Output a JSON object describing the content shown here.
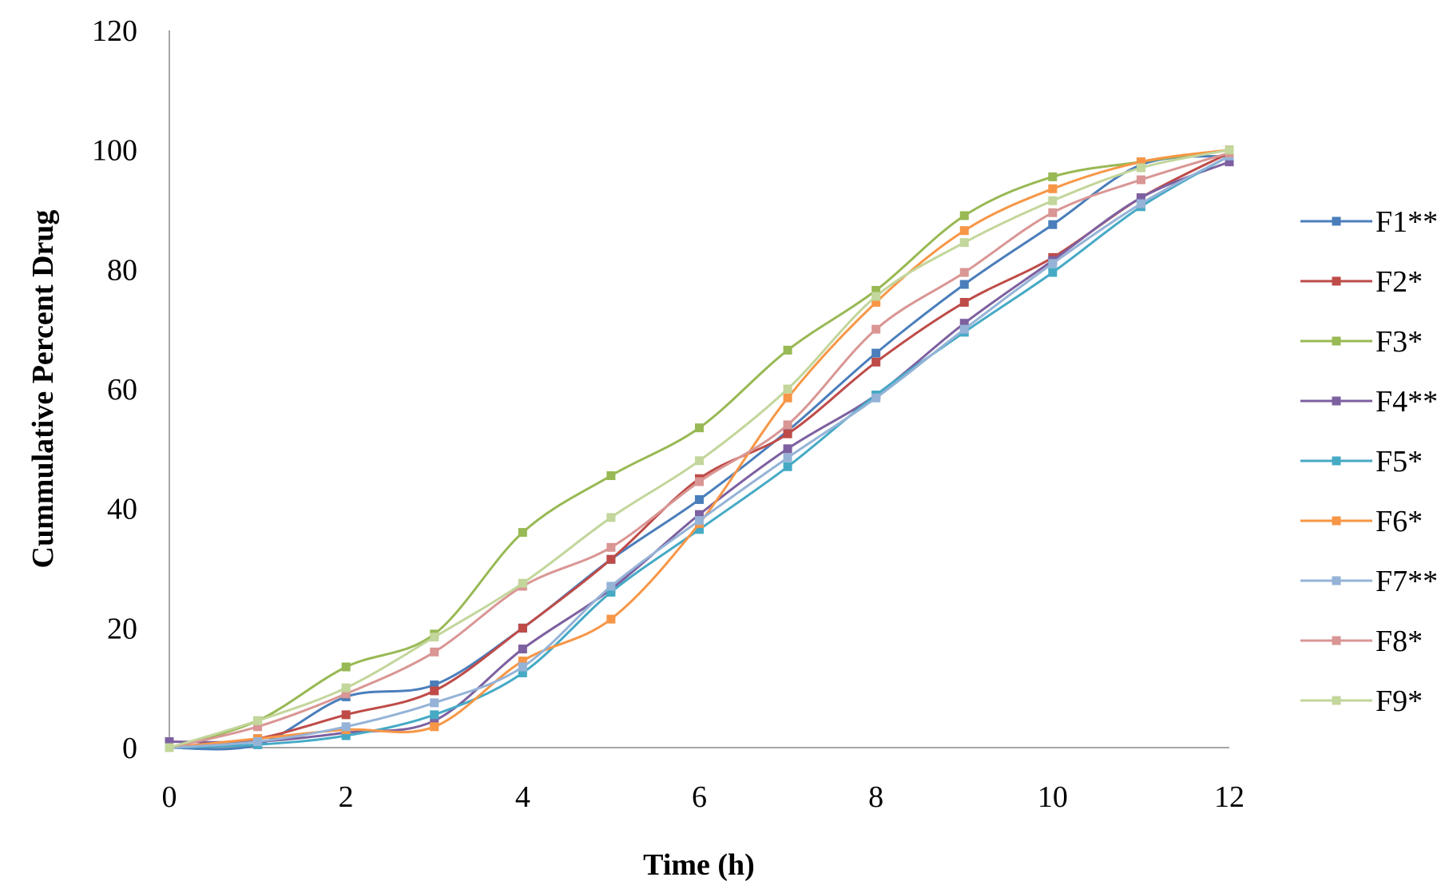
{
  "chart_data": {
    "type": "line",
    "title": "",
    "xlabel": "Time (h)",
    "ylabel": "Cummulative Percent  Drug",
    "xlim": [
      0,
      12
    ],
    "ylim": [
      0,
      120
    ],
    "xticks": [
      0,
      2,
      4,
      6,
      8,
      10,
      12
    ],
    "yticks": [
      0,
      20,
      40,
      60,
      80,
      100,
      120
    ],
    "grid": false,
    "legend_position": "right",
    "x": [
      0,
      1,
      2,
      3,
      4,
      5,
      6,
      7,
      8,
      9,
      10,
      11,
      12
    ],
    "series": [
      {
        "name": "F1**",
        "color": "#4a7ebb",
        "values": [
          0,
          0.5,
          8.5,
          10.5,
          20,
          31.5,
          41.5,
          53,
          66,
          77.5,
          87.5,
          97.5,
          99
        ]
      },
      {
        "name": "F2*",
        "color": "#be4b48",
        "values": [
          0,
          1.5,
          5.5,
          9.5,
          20,
          31.5,
          45,
          52.5,
          64.5,
          74.5,
          82,
          92,
          99.5
        ]
      },
      {
        "name": "F3*",
        "color": "#98b954",
        "values": [
          0,
          4.5,
          13.5,
          19,
          36,
          45.5,
          53.5,
          66.5,
          76.5,
          89,
          95.5,
          98,
          100
        ]
      },
      {
        "name": "F4**",
        "color": "#7d60a0",
        "values": [
          1,
          1,
          2.5,
          4.5,
          16.5,
          26.5,
          39,
          50,
          59,
          71,
          81.5,
          92,
          98
        ]
      },
      {
        "name": "F5*",
        "color": "#46aac5",
        "values": [
          0,
          0.5,
          2,
          5.5,
          12.5,
          26,
          36.5,
          47,
          59,
          69.5,
          79.5,
          90.5,
          99
        ]
      },
      {
        "name": "F6*",
        "color": "#f79646",
        "values": [
          0,
          1.5,
          3,
          3.5,
          14.5,
          21.5,
          37.5,
          58.5,
          74.5,
          86.5,
          93.5,
          98,
          100
        ]
      },
      {
        "name": "F7**",
        "color": "#95b3d7",
        "values": [
          0,
          1,
          3.5,
          7.5,
          13.5,
          27,
          38,
          48.5,
          58.5,
          70,
          81,
          91,
          99
        ]
      },
      {
        "name": "F8*",
        "color": "#d99694",
        "values": [
          0,
          3.5,
          9,
          16,
          27,
          33.5,
          44.5,
          54,
          70,
          79.5,
          89.5,
          95,
          99.5
        ]
      },
      {
        "name": "F9*",
        "color": "#c3d69b",
        "values": [
          0,
          4.5,
          10,
          18.5,
          27.5,
          38.5,
          48,
          60,
          75.5,
          84.5,
          91.5,
          97,
          100
        ]
      }
    ]
  }
}
